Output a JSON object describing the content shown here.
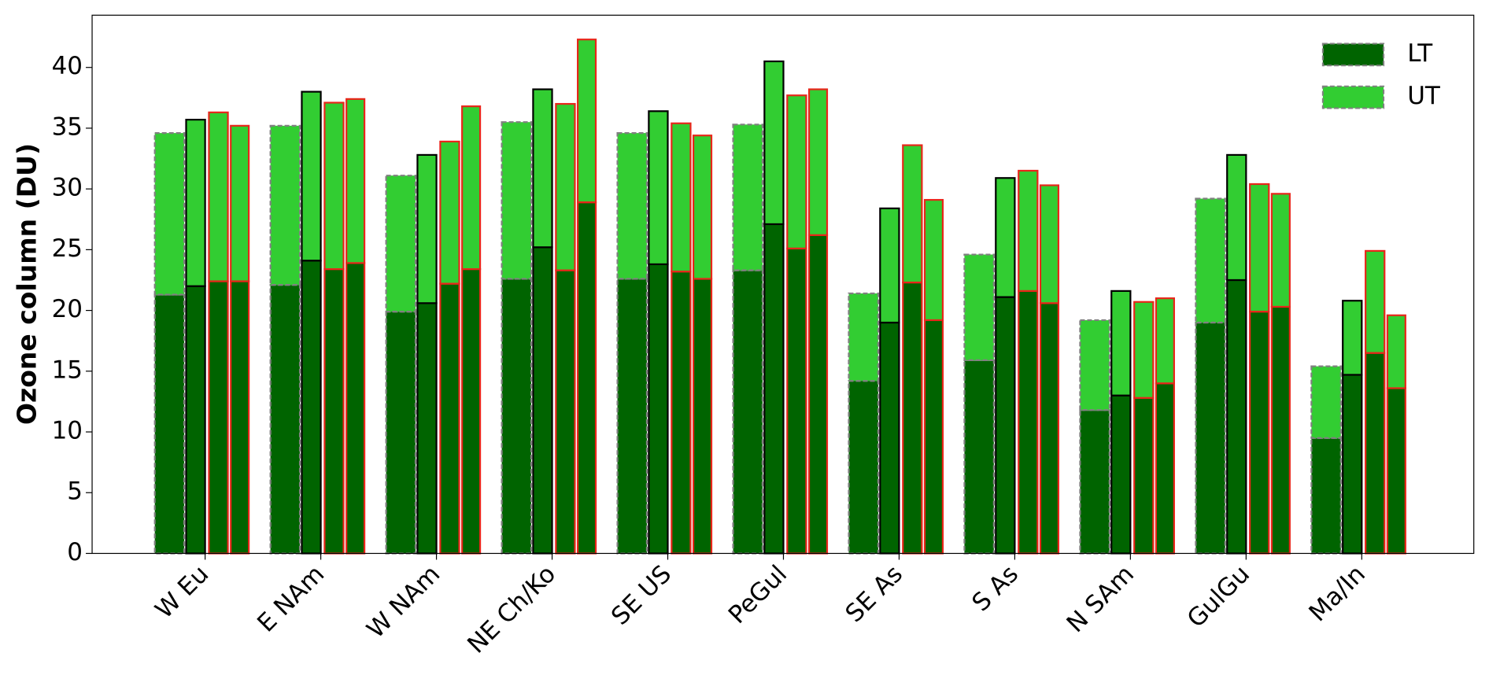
{
  "chart_data": {
    "type": "grouped_stacked_bar",
    "ylabel": "Ozone column (DU)",
    "categories": [
      "W Eu",
      "E NAm",
      "W NAm",
      "NE Ch/Ko",
      "SE US",
      "PeGul",
      "SE As",
      "S As",
      "N SAm",
      "GulGu",
      "Ma/In"
    ],
    "series": [
      {
        "name": "LT",
        "color": "#006400",
        "values": [
          [
            21.3,
            22.0,
            22.4,
            22.4
          ],
          [
            22.1,
            24.1,
            23.4,
            23.9
          ],
          [
            19.9,
            20.6,
            22.2,
            23.4
          ],
          [
            22.6,
            25.2,
            23.3,
            28.9
          ],
          [
            22.6,
            23.8,
            23.2,
            22.6
          ],
          [
            23.3,
            27.1,
            25.1,
            26.2
          ],
          [
            14.2,
            19.0,
            22.3,
            19.2
          ],
          [
            15.9,
            21.1,
            21.6,
            20.6
          ],
          [
            11.8,
            13.0,
            12.8,
            14.0
          ],
          [
            19.0,
            22.5,
            19.9,
            20.3
          ],
          [
            9.5,
            14.7,
            16.5,
            13.6
          ]
        ]
      },
      {
        "name": "UT",
        "color": "#32cd32",
        "values": [
          [
            13.3,
            13.7,
            13.9,
            12.8
          ],
          [
            13.1,
            13.9,
            13.7,
            13.5
          ],
          [
            11.2,
            12.2,
            11.7,
            13.4
          ],
          [
            12.9,
            13.0,
            13.7,
            13.4
          ],
          [
            12.0,
            12.6,
            12.2,
            11.8
          ],
          [
            12.0,
            13.4,
            12.6,
            12.0
          ],
          [
            7.2,
            9.4,
            11.3,
            9.9
          ],
          [
            8.7,
            9.8,
            9.9,
            9.7
          ],
          [
            7.4,
            8.6,
            7.9,
            7.0
          ],
          [
            10.2,
            10.3,
            10.5,
            9.3
          ],
          [
            5.9,
            6.1,
            8.4,
            6.0
          ]
        ]
      }
    ],
    "bar_edges": [
      {
        "color": "#808080",
        "dashed": true
      },
      {
        "color": "#000000",
        "dashed": false
      },
      {
        "color": "#e8261a",
        "dashed": false
      },
      {
        "color": "#e8261a",
        "dashed": false
      }
    ],
    "ylim": [
      0,
      44.3
    ],
    "yticks": [
      0,
      5,
      10,
      15,
      20,
      25,
      30,
      35,
      40
    ],
    "legend_loc": "upper right"
  }
}
